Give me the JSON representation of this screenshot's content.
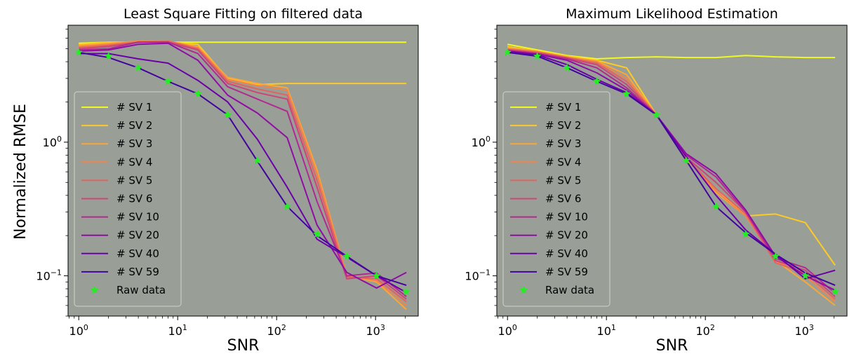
{
  "figure": {
    "ylabel": "Normalized RMSE"
  },
  "colors": {
    "panel_bg": "#999f97",
    "raw_marker": "#22ee22",
    "series": [
      "#f0f921",
      "#fdca26",
      "#fca636",
      "#f2844b",
      "#e16462",
      "#cc4778",
      "#b12a90",
      "#8f0da4",
      "#6a00a8",
      "#41049d"
    ]
  },
  "chart_data": [
    {
      "type": "line",
      "title": "Least Square Fitting on filtered data",
      "xlabel": "SNR",
      "ylabel": "Normalized RMSE",
      "xscale": "log",
      "yscale": "log",
      "xlim": [
        0.78,
        2700
      ],
      "ylim": [
        0.05,
        7.5
      ],
      "xticks": [
        "10^0",
        "10^1",
        "10^2",
        "10^3"
      ],
      "yticks": [
        "10^-1",
        "10^0"
      ],
      "grid": false,
      "legend": "center-left",
      "x": [
        1,
        2,
        4,
        8,
        16,
        32,
        64,
        128,
        256,
        512,
        1024,
        2048
      ],
      "series": [
        {
          "name": "# SV 1",
          "values": [
            5.5,
            5.6,
            5.6,
            5.6,
            5.6,
            5.6,
            5.6,
            5.6,
            5.6,
            5.6,
            5.6,
            5.6
          ]
        },
        {
          "name": "# SV 2",
          "values": [
            5.4,
            5.6,
            5.6,
            5.6,
            5.4,
            3.0,
            2.7,
            2.75,
            2.75,
            2.75,
            2.75,
            2.75
          ]
        },
        {
          "name": "# SV 3",
          "values": [
            5.3,
            5.5,
            5.7,
            5.7,
            5.2,
            3.05,
            2.75,
            2.55,
            0.62,
            0.1,
            0.09,
            0.056
          ]
        },
        {
          "name": "# SV 4",
          "values": [
            5.2,
            5.4,
            5.7,
            5.7,
            5.1,
            2.95,
            2.65,
            2.45,
            0.58,
            0.1,
            0.092,
            0.06
          ]
        },
        {
          "name": "# SV 5",
          "values": [
            5.1,
            5.3,
            5.6,
            5.7,
            5.0,
            2.85,
            2.5,
            2.25,
            0.52,
            0.098,
            0.095,
            0.064
          ]
        },
        {
          "name": "# SV 6",
          "values": [
            5.0,
            5.2,
            5.6,
            5.6,
            4.9,
            2.75,
            2.35,
            2.1,
            0.46,
            0.095,
            0.1,
            0.067
          ]
        },
        {
          "name": "# SV 10",
          "values": [
            4.9,
            5.0,
            5.6,
            5.6,
            4.6,
            2.6,
            2.1,
            1.7,
            0.36,
            0.1,
            0.105,
            0.07
          ]
        },
        {
          "name": "# SV 20",
          "values": [
            4.8,
            4.9,
            5.4,
            5.5,
            4.1,
            2.25,
            1.65,
            1.08,
            0.24,
            0.106,
            0.081,
            0.106
          ]
        },
        {
          "name": "# SV 40",
          "values": [
            4.6,
            4.6,
            4.2,
            3.9,
            2.9,
            2.0,
            1.05,
            0.46,
            0.188,
            0.138,
            0.1,
            0.075
          ]
        },
        {
          "name": "# SV 59",
          "values": [
            4.7,
            4.3,
            3.6,
            2.85,
            2.3,
            1.6,
            0.72,
            0.33,
            0.2,
            0.14,
            0.1,
            0.085
          ]
        }
      ],
      "raw": {
        "name": "Raw data",
        "values": [
          4.7,
          4.4,
          3.6,
          2.85,
          2.3,
          1.6,
          0.73,
          0.33,
          0.205,
          0.14,
          0.1,
          0.076
        ]
      }
    },
    {
      "type": "line",
      "title": "Maximum Likelihood Estimation",
      "xlabel": "SNR",
      "ylabel": "",
      "xscale": "log",
      "yscale": "log",
      "xlim": [
        0.78,
        2700
      ],
      "ylim": [
        0.05,
        7.5
      ],
      "xticks": [
        "10^0",
        "10^1",
        "10^2",
        "10^3"
      ],
      "yticks": [
        "10^-1",
        "10^0"
      ],
      "grid": false,
      "legend": "center-left",
      "x": [
        1,
        2,
        4,
        8,
        16,
        32,
        64,
        128,
        256,
        512,
        1024,
        2048
      ],
      "series": [
        {
          "name": "# SV 1",
          "values": [
            5.4,
            4.9,
            4.45,
            4.2,
            4.3,
            4.35,
            4.3,
            4.3,
            4.45,
            4.35,
            4.3,
            4.3
          ]
        },
        {
          "name": "# SV 2",
          "values": [
            5.2,
            4.8,
            4.4,
            4.1,
            3.6,
            1.6,
            0.75,
            0.45,
            0.28,
            0.29,
            0.25,
            0.12
          ]
        },
        {
          "name": "# SV 3",
          "values": [
            5.1,
            4.8,
            4.35,
            4.05,
            3.2,
            1.6,
            0.78,
            0.42,
            0.28,
            0.13,
            0.09,
            0.06
          ]
        },
        {
          "name": "# SV 4",
          "values": [
            5.0,
            4.75,
            4.3,
            4.0,
            3.0,
            1.6,
            0.76,
            0.43,
            0.28,
            0.13,
            0.1,
            0.064
          ]
        },
        {
          "name": "# SV 5",
          "values": [
            4.95,
            4.7,
            4.3,
            3.9,
            2.85,
            1.6,
            0.76,
            0.45,
            0.29,
            0.125,
            0.105,
            0.067
          ]
        },
        {
          "name": "# SV 6",
          "values": [
            4.9,
            4.65,
            4.25,
            3.8,
            2.7,
            1.6,
            0.77,
            0.5,
            0.3,
            0.13,
            0.11,
            0.07
          ]
        },
        {
          "name": "# SV 10",
          "values": [
            4.85,
            4.6,
            4.2,
            3.6,
            2.55,
            1.6,
            0.8,
            0.55,
            0.3,
            0.135,
            0.115,
            0.074
          ]
        },
        {
          "name": "# SV 20",
          "values": [
            4.8,
            4.55,
            4.1,
            3.3,
            2.45,
            1.6,
            0.82,
            0.58,
            0.31,
            0.14,
            0.1,
            0.078
          ]
        },
        {
          "name": "# SV 40",
          "values": [
            4.75,
            4.5,
            3.8,
            2.95,
            2.35,
            1.6,
            0.78,
            0.4,
            0.22,
            0.145,
            0.095,
            0.11
          ]
        },
        {
          "name": "# SV 59",
          "values": [
            4.7,
            4.4,
            3.6,
            2.85,
            2.3,
            1.6,
            0.73,
            0.33,
            0.21,
            0.145,
            0.105,
            0.085
          ]
        }
      ],
      "raw": {
        "name": "Raw data",
        "values": [
          4.7,
          4.4,
          3.6,
          2.85,
          2.3,
          1.6,
          0.73,
          0.33,
          0.205,
          0.14,
          0.1,
          0.076
        ]
      }
    }
  ]
}
